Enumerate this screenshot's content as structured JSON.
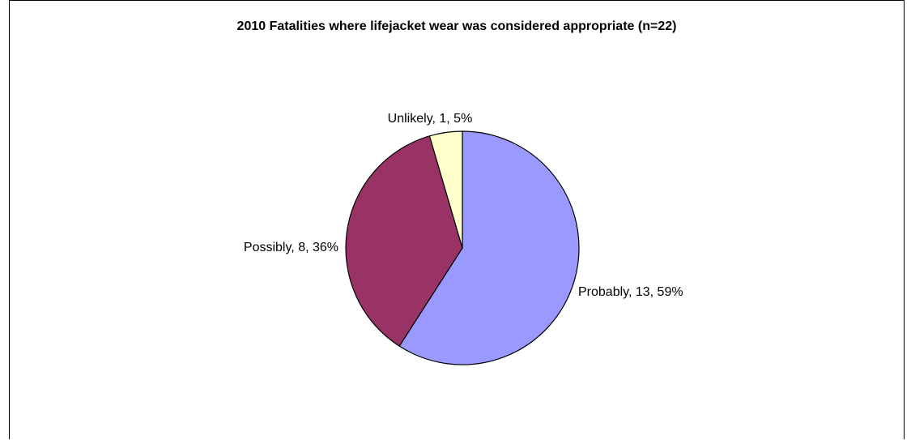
{
  "chart_data": {
    "type": "pie",
    "title": "2010 Fatalities where lifejacket wear was considered appropriate (n=22)",
    "slices": [
      {
        "name": "Probably",
        "value": 13,
        "percent": "59%",
        "label": "Probably, 13, 59%",
        "color": "#9999ff"
      },
      {
        "name": "Possibly",
        "value": 8,
        "percent": "36%",
        "label": "Possibly, 8, 36%",
        "color": "#993366"
      },
      {
        "name": "Unlikely",
        "value": 1,
        "percent": "5%",
        "label": "Unlikely, 1, 5%",
        "color": "#ffffcc"
      }
    ],
    "start_angle_deg": 0,
    "direction": "clockwise",
    "slice_border_color": "#000000",
    "legend": "none"
  }
}
